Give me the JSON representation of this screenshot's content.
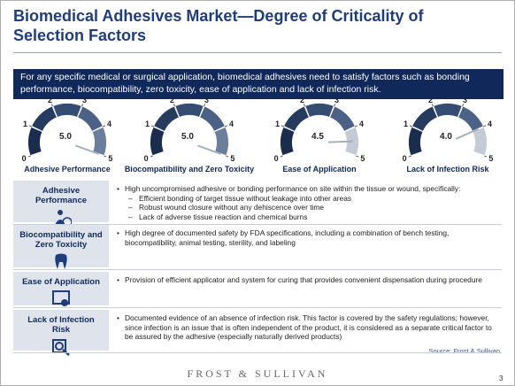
{
  "title": "Biomedical Adhesives Market—Degree of Criticality of Selection Factors",
  "intro": "For any specific medical or surgical application, biomedical adhesives need to satisfy factors such as bonding performance, biocompatibility, zero toxicity, ease of application and lack of infection risk.",
  "gauge_ticks": [
    0,
    1,
    2,
    3,
    4,
    5
  ],
  "gauge_colors": [
    "#1b2d4d",
    "#263c5f",
    "#354d72",
    "#4b6286",
    "#6b7f9c"
  ],
  "gauge_empty_color": "#c5cbd4",
  "gauges": [
    {
      "label": "Adhesive Performance",
      "value": 5,
      "value_label": "5.0"
    },
    {
      "label": "Biocompatibility and Zero Toxicity",
      "value": 5,
      "value_label": "5.0"
    },
    {
      "label": "Ease of Application",
      "value": 4.5,
      "value_label": "4.5"
    },
    {
      "label": "Lack of Infection Risk",
      "value": 4,
      "value_label": "4.0"
    }
  ],
  "table": {
    "rows": [
      {
        "factor": "Adhesive Performance",
        "bullet": "High uncompromised adhesive or bonding performance on site within the tissue or wound, specifically:",
        "sub_bullets": [
          "Efficient bonding of target tissue without leakage into other areas",
          "Robust wound closure without any dehiscence over time",
          "Lack of adverse tissue reaction and chemical burns"
        ]
      },
      {
        "factor": "Biocompatibility and Zero Toxicity",
        "bullet": "High degree of documented safety by FDA specifications, including a combination of bench testing, biocompatibility, animal testing, sterility, and labeling",
        "sub_bullets": []
      },
      {
        "factor": "Ease of Application",
        "bullet": "Provision of efficient applicator and system for curing that provides convenient dispensation during procedure",
        "sub_bullets": []
      },
      {
        "factor": "Lack of Infection Risk",
        "bullet": "Documented evidence of an absence of infection risk. This factor is covered by the safety regulations; however, since infection is an issue that is often independent of the product, it is considered as a separate critical factor to be assured by the adhesive (especially naturally derived products)",
        "sub_bullets": []
      }
    ]
  },
  "source": "Source: Frost & Sullivan",
  "footer": "FROST & SULLIVAN",
  "page_number": "3"
}
